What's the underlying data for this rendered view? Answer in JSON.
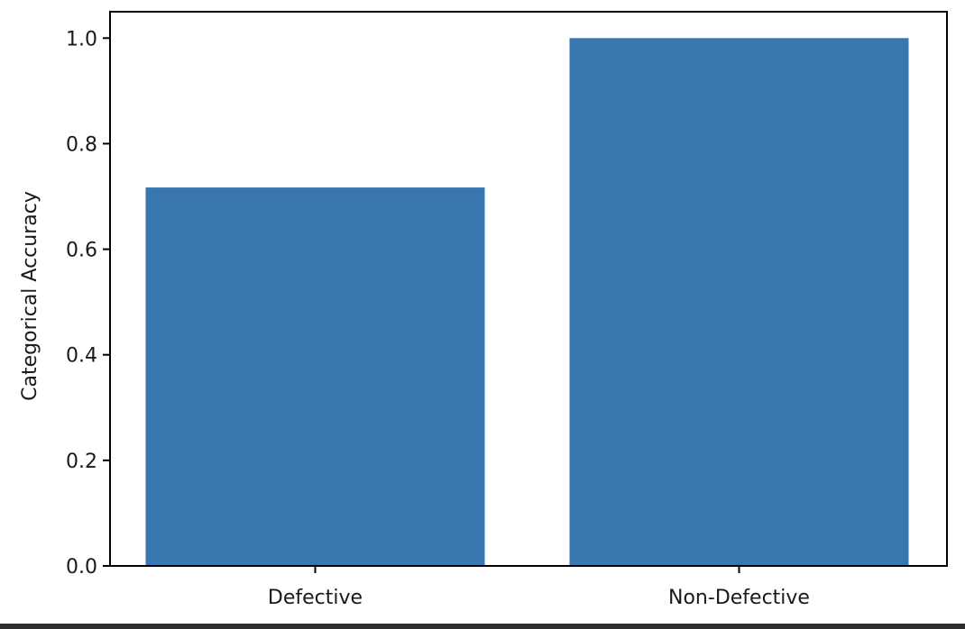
{
  "chart_data": {
    "type": "bar",
    "categories": [
      "Defective",
      "Non-Defective"
    ],
    "values": [
      0.717,
      1.0
    ],
    "title": "",
    "xlabel": "",
    "ylabel": "Categorical Accuracy",
    "ylim": [
      0,
      1.05
    ],
    "yticks": [
      0.0,
      0.2,
      0.4,
      0.6,
      0.8,
      1.0
    ],
    "ytick_labels": [
      "0.0",
      "0.2",
      "0.4",
      "0.6",
      "0.8",
      "1.0"
    ],
    "grid": false,
    "bar_color": "#3a76af",
    "axis_color": "#000000"
  }
}
